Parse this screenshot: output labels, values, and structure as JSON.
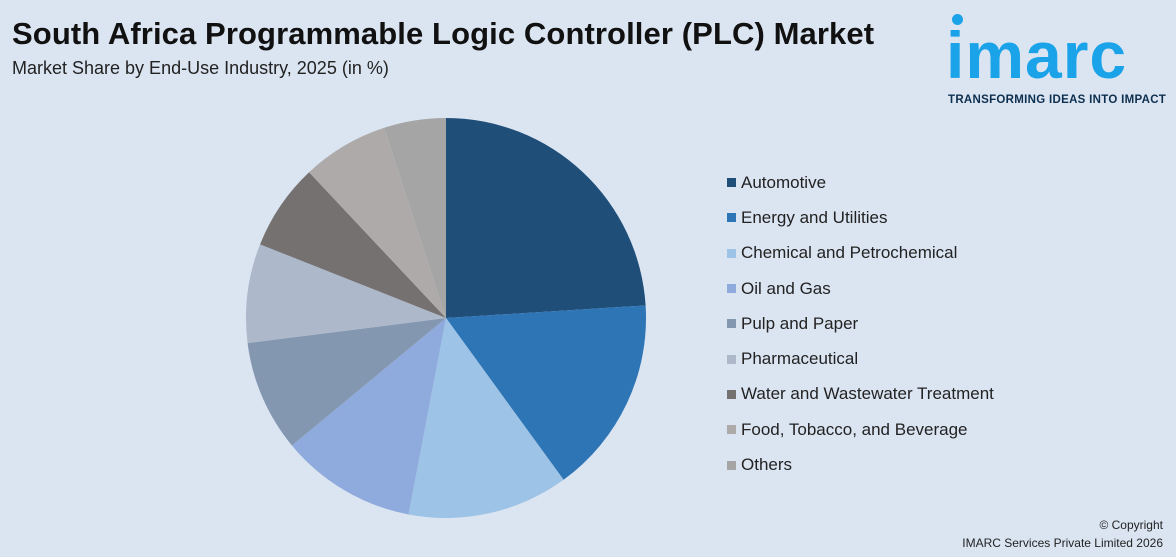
{
  "header": {
    "title": "South Africa Programmable Logic Controller (PLC) Market",
    "subtitle": "Market Share by End-Use Industry, 2025 (in %)"
  },
  "logo": {
    "wordmark": "imarc",
    "tagline": "TRANSFORMING IDEAS INTO IMPACT",
    "color": "#1aa3e8"
  },
  "chart_data": {
    "type": "pie",
    "title": "South Africa Programmable Logic Controller (PLC) Market",
    "subtitle": "Market Share by End-Use Industry, 2025 (in %)",
    "legend_position": "right",
    "categories": [
      "Automotive",
      "Energy and Utilities",
      "Chemical and Petrochemical",
      "Oil and Gas",
      "Pulp and Paper",
      "Pharmaceutical",
      "Water and Wastewater Treatment",
      "Food, Tobacco, and Beverage",
      "Others"
    ],
    "values": [
      24,
      16,
      13,
      11,
      9,
      8,
      7,
      7,
      5
    ],
    "colors": [
      "#1f4e79",
      "#2e75b6",
      "#9dc3e6",
      "#8faadc",
      "#8497b0",
      "#adb9ca",
      "#767171",
      "#aeaaaa",
      "#a5a5a5"
    ]
  },
  "footer": {
    "copyright_line1": "© Copyright",
    "copyright_line2": "IMARC Services Private Limited 2026"
  }
}
